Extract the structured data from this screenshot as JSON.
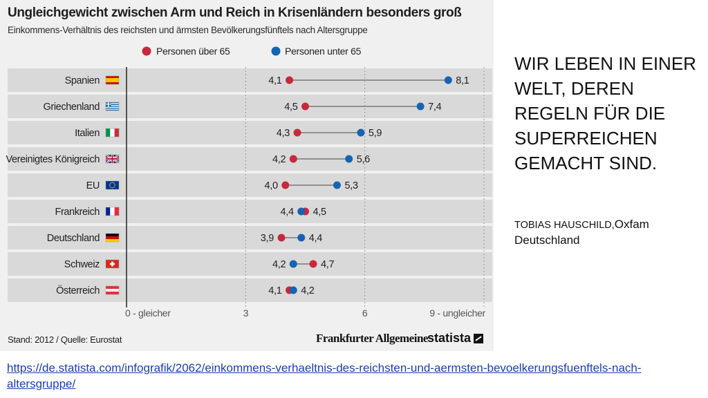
{
  "chart_data": {
    "type": "dumbbell",
    "title": "Ungleichgewicht zwischen Arm und Reich in Krisenländern besonders groß",
    "subtitle": "Einkommens-Verhältnis des reichsten und ärmsten Bevölkerungsfünftels nach Altersgruppe",
    "legend": {
      "over65": {
        "label": "Personen über 65",
        "color": "#c8283c"
      },
      "under65": {
        "label": "Personen unter 65",
        "color": "#1464b4"
      }
    },
    "categories": [
      "Spanien",
      "Griechenland",
      "Italien",
      "Vereinigtes Königreich",
      "EU",
      "Frankreich",
      "Deutschland",
      "Schweiz",
      "Österreich"
    ],
    "flags": [
      "flag-spain",
      "flag-greece",
      "flag-italy",
      "flag-uk",
      "flag-eu",
      "flag-france",
      "flag-germany",
      "flag-switzerland",
      "flag-austria"
    ],
    "series": [
      {
        "name": "Personen über 65",
        "values": [
          4.1,
          4.5,
          4.3,
          4.2,
          4.0,
          4.5,
          3.9,
          4.7,
          4.1
        ],
        "labels": [
          "4,1",
          "4,5",
          "4,3",
          "4,2",
          "4,0",
          "4,5",
          "3,9",
          "4,7",
          "4,1"
        ]
      },
      {
        "name": "Personen unter 65",
        "values": [
          8.1,
          7.4,
          5.9,
          5.6,
          5.3,
          4.4,
          4.4,
          4.2,
          4.2
        ],
        "labels": [
          "8,1",
          "7,4",
          "5,9",
          "5,6",
          "5,3",
          "4,4",
          "4,4",
          "4,2",
          "4,2"
        ]
      }
    ],
    "x_ticks": [
      {
        "value": 0,
        "label": "0 - gleicher"
      },
      {
        "value": 3,
        "label": "3"
      },
      {
        "value": 6,
        "label": "6"
      },
      {
        "value": 9,
        "label": "9 - ungleicher"
      }
    ],
    "xlim": [
      0,
      9
    ],
    "source": "Stand: 2012 / Quelle: Eurostat"
  },
  "logos": {
    "faz": "Frankfurter Allgemeine",
    "statista": "statista"
  },
  "quote": {
    "text": "WIR LEBEN IN EINER WELT, DEREN REGELN FÜR DIE SUPERREICHEN GEMACHT SIND.",
    "author_name": "TOBIAS HAUSCHILD,",
    "author_org": "Oxfam Deutschland"
  },
  "source_url": "https://de.statista.com/infografik/2062/einkommens-verhaeltnis-des-reichsten-und-aermsten-bevoelkerungsfuenftels-nach-altersgruppe/"
}
